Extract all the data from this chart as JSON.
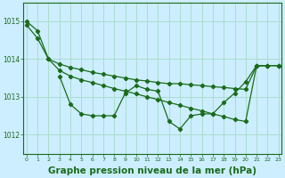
{
  "background_color": "#cceeff",
  "grid_color": "#aaddcc",
  "line_color": "#1a6b1a",
  "xlabel": "Graphe pression niveau de la mer (hPa)",
  "xlabel_fontsize": 7.5,
  "ylim": [
    1011.5,
    1015.5
  ],
  "xlim": [
    -0.3,
    23.3
  ],
  "yticks": [
    1012,
    1013,
    1014,
    1015
  ],
  "xticks": [
    0,
    1,
    2,
    3,
    4,
    5,
    6,
    7,
    8,
    9,
    10,
    11,
    12,
    13,
    14,
    15,
    16,
    17,
    18,
    19,
    20,
    21,
    22,
    23
  ],
  "series": [
    [
      1015.0,
      1014.75,
      1014.0,
      1013.7,
      1013.55,
      1013.45,
      1013.38,
      1013.3,
      1013.22,
      1013.15,
      1013.08,
      1013.0,
      1012.93,
      1012.85,
      1012.78,
      1012.7,
      1012.63,
      1012.55,
      1012.48,
      1012.4,
      1012.35,
      1013.82,
      1013.83,
      1013.83
    ],
    [
      1014.9,
      1014.55,
      1014.0,
      1013.87,
      1013.78,
      1013.72,
      1013.65,
      1013.6,
      1013.55,
      1013.5,
      1013.45,
      1013.42,
      1013.38,
      1013.35,
      1013.35,
      1013.32,
      1013.3,
      1013.27,
      1013.25,
      1013.22,
      1013.2,
      1013.82,
      1013.83,
      1013.83
    ],
    [
      null,
      null,
      null,
      1013.55,
      1012.8,
      1012.55,
      1012.5,
      1012.5,
      1012.5,
      1013.1,
      1013.3,
      1013.2,
      1013.15,
      1012.35,
      1012.15,
      1012.5,
      1012.55,
      1012.55,
      1012.85,
      1013.1,
      1013.4,
      1013.83,
      1013.83,
      1013.83
    ]
  ]
}
